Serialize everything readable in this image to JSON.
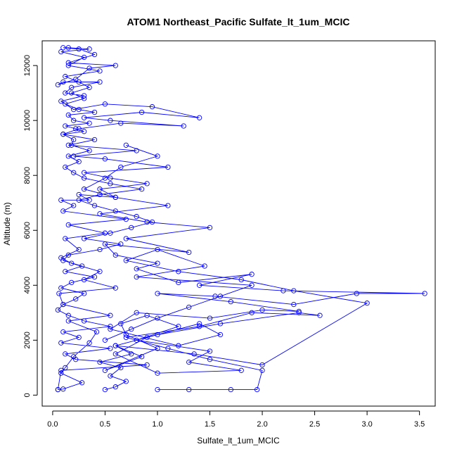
{
  "chart_data": {
    "type": "line",
    "title": "ATOM1 Northeast_Pacific Sulfate_lt_1um_MCIC",
    "xlabel": "Sulfate_lt_1um_MCIC",
    "ylabel": "Altitude (m)",
    "xlim": [
      -0.1,
      3.65
    ],
    "ylim": [
      -400,
      12900
    ],
    "x_ticks": [
      "0.0",
      "0.5",
      "1.0",
      "1.5",
      "2.0",
      "2.5",
      "3.0",
      "3.5"
    ],
    "y_ticks": [
      "0",
      "2000",
      "4000",
      "6000",
      "8000",
      "10000",
      "12000"
    ],
    "x_tick_values": [
      0,
      0.5,
      1.0,
      1.5,
      2.0,
      2.5,
      3.0,
      3.5
    ],
    "y_tick_values": [
      0,
      2000,
      4000,
      6000,
      8000,
      10000,
      12000
    ],
    "marker": "open-circle",
    "grid": false,
    "series": [
      {
        "color": "#0000ff",
        "x": [
          0.05,
          0.1,
          0.28,
          0.08,
          0.12,
          0.2,
          0.35,
          0.42,
          0.15,
          0.55,
          0.1,
          0.06,
          0.6,
          0.3,
          0.45,
          0.18,
          0.08,
          0.25,
          0.12,
          0.5,
          0.15,
          0.7,
          0.1,
          0.2,
          0.08,
          0.35,
          0.25,
          0.6,
          0.45,
          0.9,
          0.55,
          0.3,
          1.1,
          0.5,
          0.2,
          0.8,
          0.15,
          0.4,
          0.1,
          0.25,
          0.65,
          1.25,
          0.55,
          0.3,
          0.85,
          1.4,
          0.95,
          0.5,
          0.2,
          0.08,
          0.3,
          0.12,
          0.18,
          0.45,
          0.1,
          0.05,
          0.22,
          0.35,
          0.6,
          0.15,
          0.4,
          0.25,
          0.1,
          0.15,
          0.35,
          0.08,
          0.3,
          0.15,
          0.45,
          0.12,
          0.25,
          0.35,
          0.18,
          0.3,
          0.12,
          0.25,
          0.4,
          0.15,
          0.2,
          0.35,
          0.12,
          0.22,
          0.3,
          0.1,
          0.2,
          0.18,
          0.35,
          0.15,
          0.25,
          0.12,
          0.2,
          0.3,
          0.55,
          0.85,
          0.45,
          0.25,
          0.4,
          0.6,
          0.8,
          0.95,
          0.75,
          0.55,
          0.3,
          0.65,
          0.45,
          0.15,
          0.1,
          0.28,
          0.12,
          0.4,
          0.18,
          0.08,
          0.3,
          0.22,
          0.1,
          0.05,
          0.15,
          0.3,
          0.55,
          0.1,
          0.25,
          0.08,
          0.55,
          0.12,
          0.22,
          0.9,
          0.08,
          0.05
        ],
        "y": [
          200,
          220,
          450,
          800,
          1000,
          1400,
          1900,
          2300,
          2700,
          2900,
          3300,
          3700,
          3900,
          4200,
          4500,
          4800,
          5000,
          5300,
          5700,
          5900,
          6200,
          6400,
          6700,
          6900,
          7100,
          7100,
          7300,
          7200,
          7500,
          7700,
          7900,
          8100,
          8300,
          8600,
          8700,
          8900,
          9100,
          9300,
          9500,
          9700,
          9900,
          9800,
          10000,
          10100,
          10300,
          10100,
          10500,
          10600,
          10400,
          10700,
          10900,
          11000,
          11200,
          11400,
          11400,
          11300,
          11500,
          11900,
          12000,
          12100,
          12400,
          12600,
          12650,
          12650,
          12600,
          12500,
          12300,
          12000,
          11800,
          11600,
          11400,
          11200,
          11000,
          10800,
          10600,
          10400,
          10300,
          10200,
          10000,
          9900,
          9800,
          9700,
          9600,
          9500,
          9300,
          9100,
          8900,
          8700,
          8500,
          8300,
          8100,
          7900,
          7700,
          7500,
          7300,
          7100,
          6900,
          6700,
          6500,
          6300,
          6100,
          5900,
          5700,
          5500,
          5300,
          5100,
          4900,
          4700,
          4500,
          4300,
          4100,
          3900,
          3700,
          3500,
          3300,
          3100,
          2900,
          2700,
          2500,
          2300,
          2100,
          1900,
          1700,
          1500,
          1300,
          1100,
          900,
          200
        ]
      },
      {
        "color": "#0000ff",
        "x": [
          0.5,
          0.6,
          0.7,
          0.55,
          0.65,
          0.45,
          0.75,
          0.6,
          0.85,
          0.5,
          1.0,
          0.7,
          0.65,
          0.9,
          1.2,
          0.8,
          1.5,
          1.3,
          1.8,
          1.0,
          0.6,
          0.9,
          1.4,
          1.6,
          1.2,
          0.55,
          0.8,
          1.5,
          2.0,
          2.35,
          1.7,
          1.0,
          1.55,
          2.3,
          2.9,
          3.55,
          2.2,
          1.4,
          1.9,
          1.2,
          0.8,
          1.0,
          0.6,
          0.5,
          1.3,
          0.7,
          1.5,
          0.9,
          0.45,
          1.1,
          0.6,
          0.3,
          0.5,
          0.65,
          1.0,
          0.7
        ],
        "y": [
          200,
          300,
          500,
          700,
          1000,
          1200,
          1500,
          1800,
          1400,
          900,
          1700,
          2200,
          2600,
          2900,
          2500,
          2000,
          1600,
          1200,
          900,
          800,
          1500,
          2100,
          2600,
          2200,
          1800,
          2400,
          3000,
          2800,
          3100,
          3050,
          3400,
          3700,
          3600,
          3300,
          3700,
          3700,
          3800,
          4000,
          4400,
          4100,
          4600,
          4800,
          5100,
          5500,
          5200,
          5700,
          6100,
          6300,
          6600,
          6900,
          7200,
          7500,
          7900,
          8300,
          8700,
          9100
        ]
      },
      {
        "color": "#0000ff",
        "x": [
          1.0,
          1.3,
          1.7,
          1.95,
          2.0,
          1.5,
          1.1,
          0.7,
          1.4,
          1.9,
          2.55,
          2.35,
          1.6,
          1.0,
          0.6,
          1.35,
          2.0,
          3.0,
          2.3,
          1.8,
          1.2,
          0.7,
          1.0,
          1.45,
          0.8,
          1.9,
          1.6,
          1.3,
          1.0,
          0.75,
          0.5
        ],
        "y": [
          200,
          200,
          200,
          200,
          900,
          1300,
          1700,
          2100,
          2500,
          3000,
          2900,
          3000,
          2600,
          2200,
          1800,
          1500,
          1100,
          3350,
          3800,
          4200,
          4500,
          4900,
          5300,
          4700,
          4300,
          4000,
          3600,
          3200,
          2800,
          2400,
          2000
        ]
      }
    ]
  }
}
